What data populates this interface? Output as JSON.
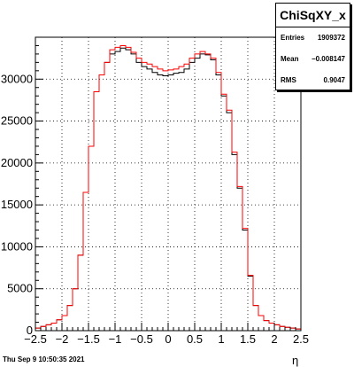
{
  "chart_data": {
    "type": "histogram",
    "title": "ChiSqXY_x",
    "xlabel": "η",
    "ylabel": "",
    "xlim": [
      -2.5,
      2.5
    ],
    "ylim": [
      0,
      35000
    ],
    "bin_width": 0.1,
    "grid": true,
    "x_ticks": [
      "−2.5",
      "−2",
      "−1.5",
      "−1",
      "−0.5",
      "0",
      "0.5",
      "1",
      "1.5",
      "2",
      "2.5"
    ],
    "y_ticks": [
      "0",
      "5000",
      "10000",
      "15000",
      "20000",
      "25000",
      "30000"
    ],
    "series": [
      {
        "color": "#000000",
        "values": [
          300,
          500,
          700,
          900,
          1300,
          1800,
          3000,
          5000,
          9000,
          16500,
          22000,
          28500,
          30500,
          32000,
          33000,
          33300,
          33700,
          33500,
          33000,
          32000,
          31500,
          31200,
          30800,
          30500,
          30400,
          30500,
          30700,
          30800,
          31200,
          32000,
          32500,
          33000,
          32900,
          32300,
          30500,
          28000,
          26000,
          21000,
          17000,
          12000,
          6500,
          3000,
          1800,
          1200,
          900,
          700,
          500,
          400,
          300,
          200
        ]
      },
      {
        "color": "#ff0000",
        "values": [
          300,
          500,
          700,
          900,
          1300,
          1800,
          3000,
          5000,
          9000,
          16500,
          22000,
          28500,
          30500,
          32000,
          33500,
          33800,
          34000,
          33800,
          33200,
          32500,
          32000,
          31800,
          31500,
          31200,
          31000,
          31100,
          31200,
          31500,
          31800,
          32500,
          33000,
          33300,
          33000,
          32500,
          30800,
          28200,
          26300,
          21300,
          17200,
          12200,
          6600,
          3000,
          1800,
          1200,
          900,
          700,
          500,
          400,
          300,
          200
        ]
      }
    ]
  },
  "stats": {
    "title": "ChiSqXY_x",
    "entries_label": "Entries",
    "entries_value": "1909372",
    "mean_label": "Mean",
    "mean_value": "−0.008147",
    "rms_label": "RMS",
    "rms_value": "0.9047"
  },
  "footer": {
    "timestamp": "Thu Sep  9 10:50:35 2021"
  }
}
